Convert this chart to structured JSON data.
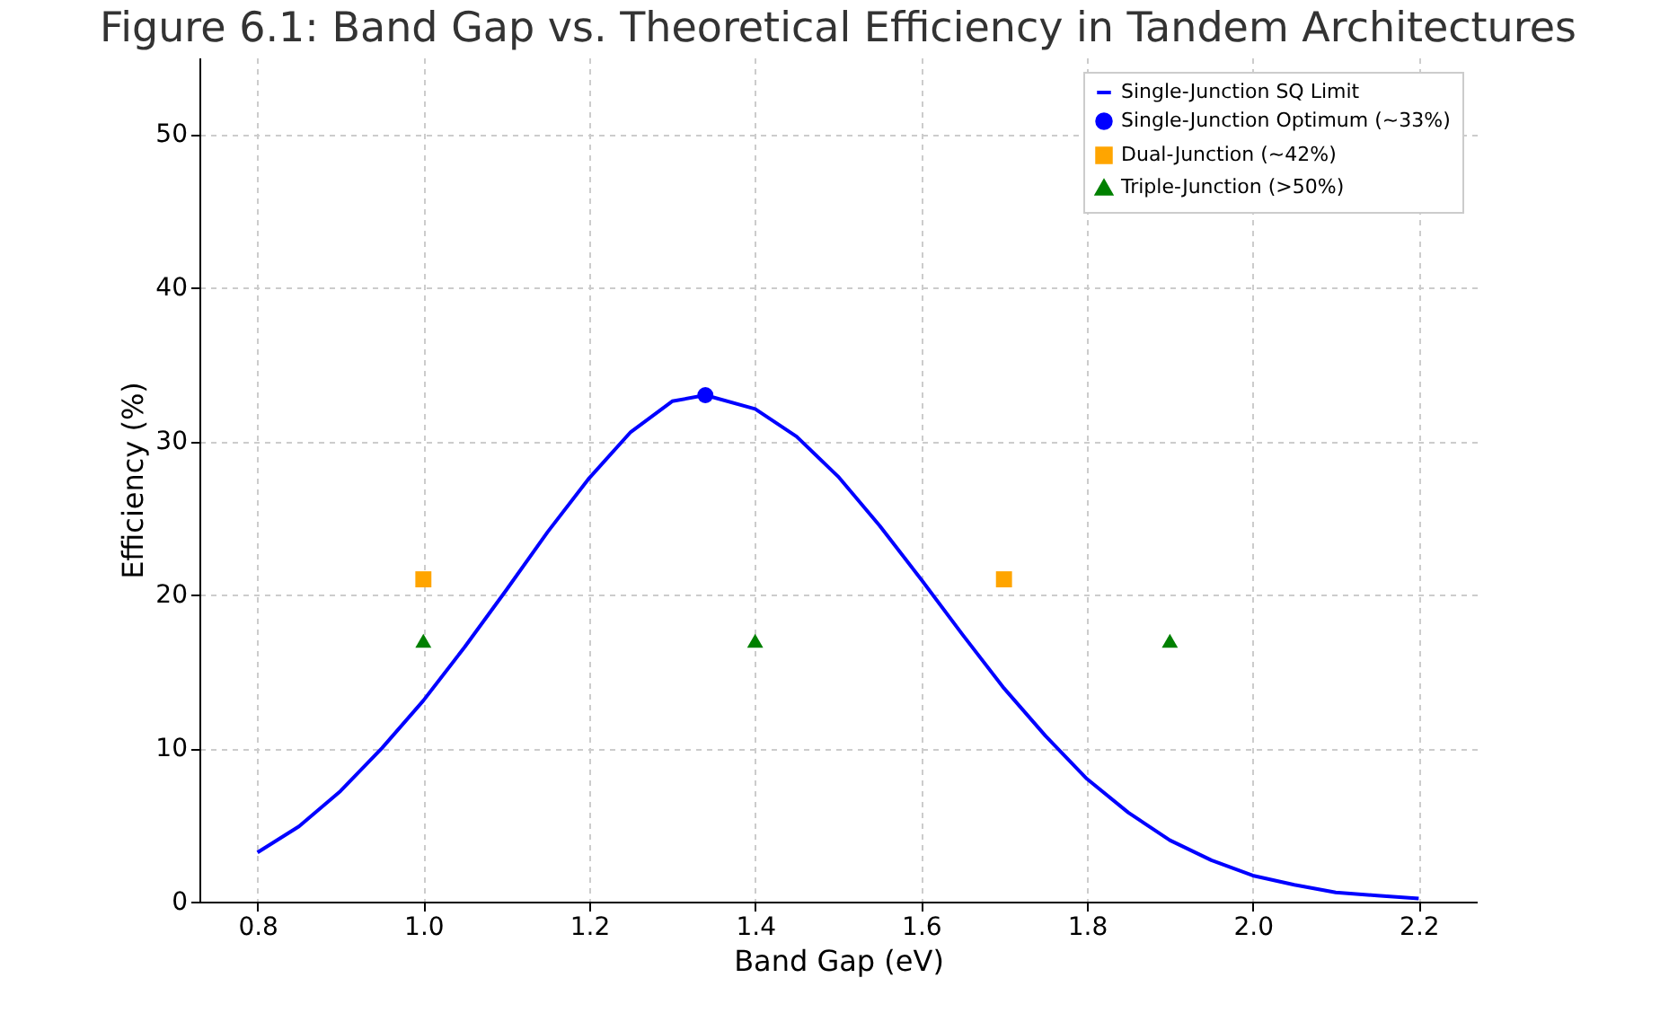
{
  "chart_data": {
    "type": "scatter",
    "title": "Figure 6.1: Band Gap vs. Theoretical Efficiency in Tandem Architectures",
    "xlabel": "Band Gap (eV)",
    "ylabel": "Efficiency (%)",
    "xlim": [
      0.73,
      2.27
    ],
    "xticks": [
      0.8,
      {
        "value": 1,
        "label": "1.0"
      },
      1.2,
      1.4,
      1.6,
      1.8,
      {
        "value": 2,
        "label": "2.0"
      },
      2.2
    ],
    "ylim": [
      0,
      55
    ],
    "yticks": [
      0,
      10,
      20,
      30,
      40,
      50
    ],
    "grid": true,
    "legend": "top right",
    "series": [
      {
        "name": "Single-Junction SQ Limit",
        "type": "line",
        "color": "#0000ff",
        "marker": "none",
        "line_style": "solid",
        "x": [
          0.8,
          0.85,
          0.9,
          0.95,
          1.0,
          1.05,
          1.1,
          1.15,
          1.2,
          1.25,
          1.3,
          1.34,
          1.4,
          1.45,
          1.5,
          1.55,
          1.6,
          1.65,
          1.7,
          1.75,
          1.8,
          1.85,
          1.9,
          1.95,
          2.0,
          2.05,
          2.1,
          2.15,
          2.2
        ],
        "values": [
          3.2,
          4.9,
          7.2,
          10,
          13.1,
          16.6,
          20.3,
          24.1,
          27.6,
          30.6,
          32.6,
          33,
          32.1,
          30.3,
          27.7,
          24.5,
          21.0,
          17.4,
          13.9,
          10.8,
          8.0,
          5.8,
          4.0,
          2.7,
          1.7,
          1.1,
          0.6,
          0.4,
          0.2
        ]
      },
      {
        "name": "Single-Junction Optimum (~33%)",
        "type": "scatter",
        "color": "#0000ff",
        "marker": "circle",
        "x": [
          1.34
        ],
        "values": [
          33
        ]
      },
      {
        "name": "Dual-Junction (~42%)",
        "type": "scatter",
        "color": "#ffa500",
        "marker": "square",
        "x": [
          1.0,
          1.7
        ],
        "values": [
          21,
          21
        ]
      },
      {
        "name": "Triple-Junction (>50%)",
        "type": "scatter",
        "color": "#008000",
        "marker": "triangle",
        "x": [
          1.0,
          1.4,
          1.9
        ],
        "values": [
          17,
          17,
          17
        ]
      }
    ]
  }
}
